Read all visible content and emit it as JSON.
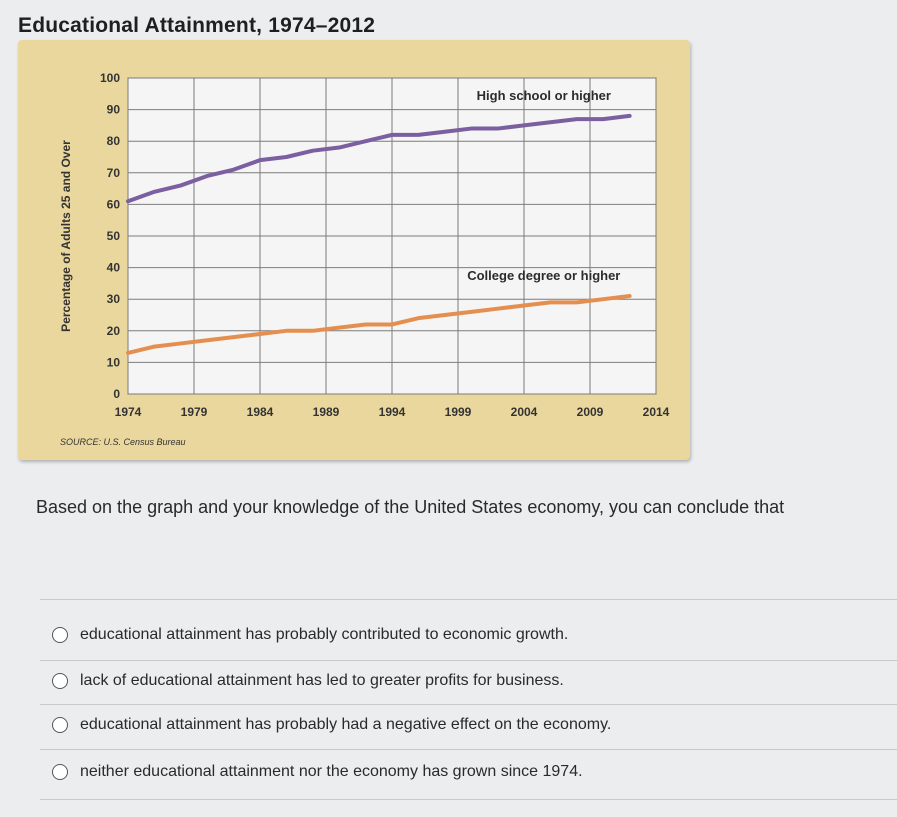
{
  "title": "Educational Attainment, 1974–2012",
  "chart_data": {
    "type": "line",
    "title": "Educational Attainment, 1974–2012",
    "xlabel": "",
    "ylabel": "Percentage of Adults 25 and Over",
    "x": [
      1974,
      1976,
      1978,
      1980,
      1982,
      1984,
      1986,
      1988,
      1990,
      1992,
      1994,
      1996,
      1998,
      2000,
      2002,
      2004,
      2006,
      2008,
      2010,
      2012
    ],
    "xlim": [
      1974,
      2014
    ],
    "ylim": [
      0,
      100
    ],
    "x_ticks": [
      "1974",
      "1979",
      "1984",
      "1989",
      "1994",
      "1999",
      "2004",
      "2009",
      "2014"
    ],
    "y_ticks": [
      "0",
      "10",
      "20",
      "30",
      "40",
      "50",
      "60",
      "70",
      "80",
      "90",
      "100"
    ],
    "grid": true,
    "series": [
      {
        "name": "High school or higher",
        "color": "#7b5fa0",
        "values": [
          61,
          64,
          66,
          69,
          71,
          74,
          75,
          77,
          78,
          80,
          82,
          82,
          83,
          84,
          84,
          85,
          86,
          87,
          87,
          88
        ]
      },
      {
        "name": "College degree or higher",
        "color": "#e48f4f",
        "values": [
          13,
          15,
          16,
          17,
          18,
          19,
          20,
          20,
          21,
          22,
          22,
          24,
          25,
          26,
          27,
          28,
          29,
          29,
          30,
          31
        ]
      }
    ],
    "annotations": [
      "High school or higher",
      "College degree or higher"
    ]
  },
  "source": "SOURCE: U.S. Census Bureau",
  "question": "Based on the graph and your knowledge of the United States economy, you can conclude that",
  "options": [
    "educational attainment has probably contributed to economic growth.",
    "lack of educational attainment has led to greater profits for business.",
    "educational attainment has probably had a negative effect on the economy.",
    "neither educational attainment nor the economy has grown since 1974."
  ]
}
